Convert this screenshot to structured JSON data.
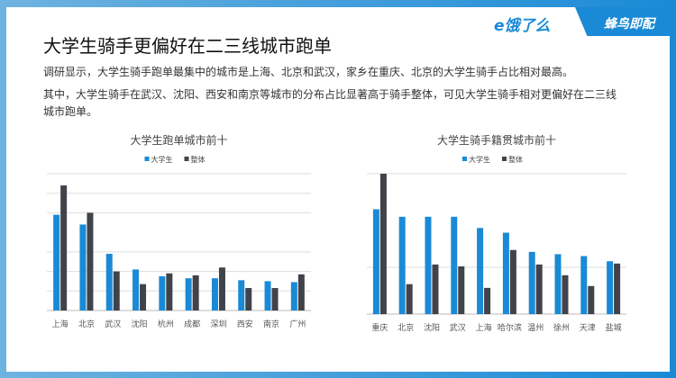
{
  "logos": {
    "eleme": "e饿了么",
    "fengniao": "蜂鸟即配"
  },
  "title": "大学生骑手更偏好在二三线城市跑单",
  "paragraph1": "调研显示，大学生骑手跑单最集中的城市是上海、北京和武汉，家乡在重庆、北京的大学生骑手占比相对最高。",
  "paragraph2": "其中，大学生骑手在武汉、沈阳、西安和南京等城市的分布占比显著高于骑手整体，可见大学生骑手相对更偏好在二三线城市跑单。",
  "colors": {
    "student": "#1a8ad6",
    "overall": "#404349"
  },
  "chart_data": [
    {
      "type": "bar",
      "title": "大学生跑单城市前十",
      "legend_position": "top",
      "grid": true,
      "categories": [
        "上海",
        "北京",
        "武汉",
        "沈阳",
        "杭州",
        "成都",
        "深圳",
        "西安",
        "南京",
        "广州"
      ],
      "ylim": [
        0,
        7
      ],
      "gridlines": [
        1,
        2,
        3,
        5,
        6,
        7
      ],
      "series": [
        {
          "name": "大学生",
          "values": [
            4.9,
            4.4,
            2.9,
            2.1,
            1.75,
            1.65,
            1.65,
            1.55,
            1.5,
            1.45
          ]
        },
        {
          "name": "整体",
          "values": [
            6.4,
            5.0,
            2.0,
            1.35,
            1.9,
            1.8,
            2.2,
            1.15,
            1.15,
            1.85
          ]
        }
      ]
    },
    {
      "type": "bar",
      "title": "大学生骑手籍贯城市前十",
      "legend_position": "top",
      "grid": true,
      "categories": [
        "重庆",
        "北京",
        "沈阳",
        "武汉",
        "上海",
        "哈尔滨",
        "温州",
        "徐州",
        "天津",
        "盐城"
      ],
      "ylim": [
        0,
        3
      ],
      "gridlines": [
        1,
        3
      ],
      "series": [
        {
          "name": "大学生",
          "values": [
            2.24,
            2.08,
            2.08,
            2.08,
            1.84,
            1.74,
            1.33,
            1.28,
            1.24,
            1.13
          ]
        },
        {
          "name": "整体",
          "values": [
            3.0,
            0.64,
            1.06,
            1.02,
            0.56,
            1.37,
            1.06,
            0.83,
            0.6,
            1.08
          ]
        }
      ]
    }
  ]
}
